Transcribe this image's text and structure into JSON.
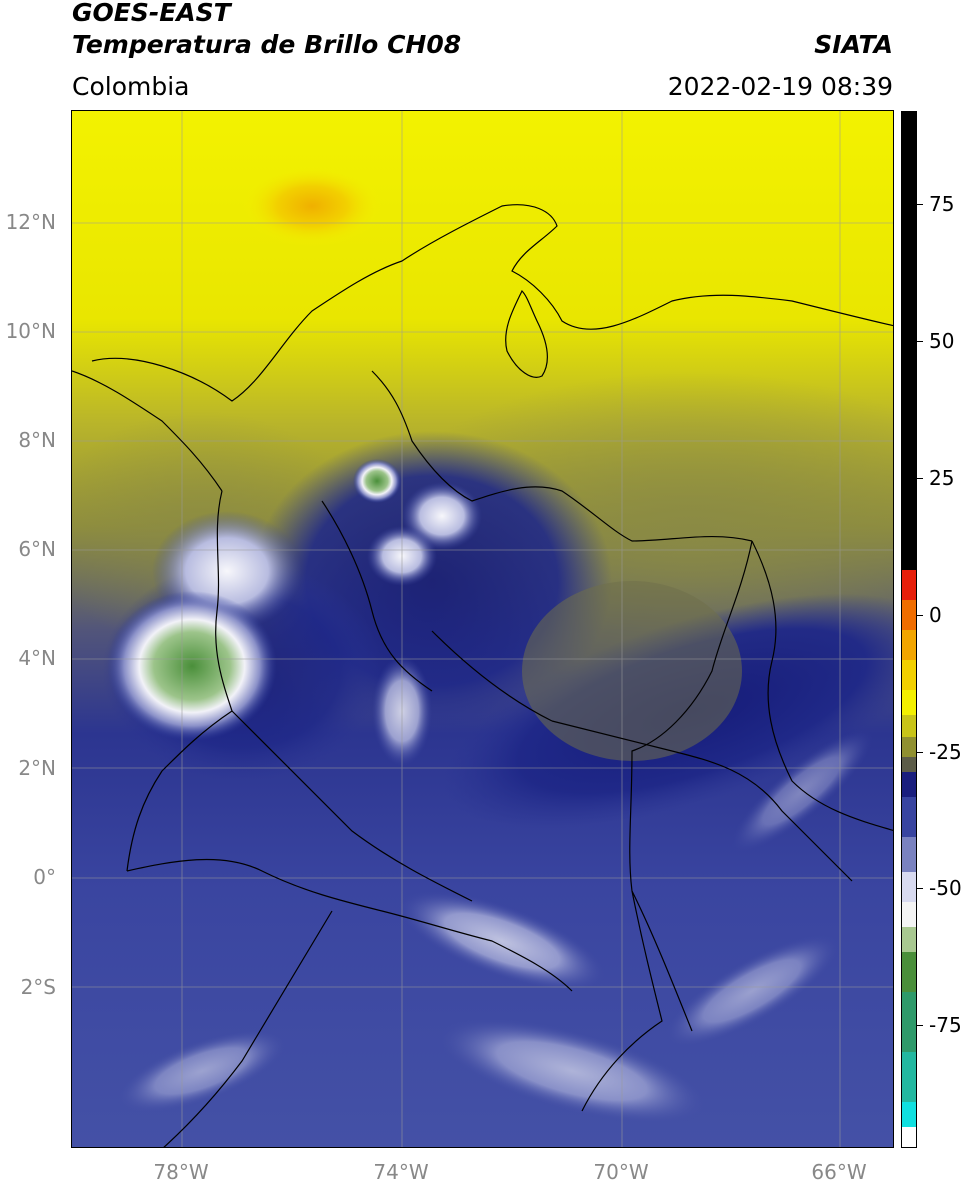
{
  "header": {
    "title_line1": "GOES-EAST",
    "title_line2": "Temperatura de Brillo CH08",
    "organization": "SIATA",
    "region": "Colombia",
    "datetime": "2022-02-19 08:39"
  },
  "map": {
    "lat_labels": [
      "12°N",
      "10°N",
      "8°N",
      "6°N",
      "4°N",
      "2°N",
      "0°",
      "2°S"
    ],
    "lat_values": [
      12,
      10,
      8,
      6,
      4,
      2,
      0,
      -2
    ],
    "lon_labels": [
      "78°W",
      "74°W",
      "70°W",
      "66°W"
    ],
    "lon_values": [
      -78,
      -74,
      -70,
      -66
    ],
    "extent": {
      "lon_min": -80,
      "lon_max": -65,
      "lat_min": -5,
      "lat_max": 14
    },
    "grid": true
  },
  "colorbar": {
    "tick_labels": [
      "75",
      "50",
      "25",
      "0",
      "-25",
      "-50",
      "-75"
    ],
    "tick_values": [
      75,
      50,
      25,
      0,
      -25,
      -50,
      -75
    ],
    "range": [
      -95,
      90
    ],
    "unit": ""
  },
  "colors": {
    "cold_blue": "#2e3c9b",
    "warm_yellow": "#f2f000",
    "olive": "#8e8f3a",
    "deep_blue": "#1a1e7e",
    "convective_white": "#ececf4",
    "cloud_top_green": "#4a8f3a",
    "peak_orange": "#f0b000"
  }
}
